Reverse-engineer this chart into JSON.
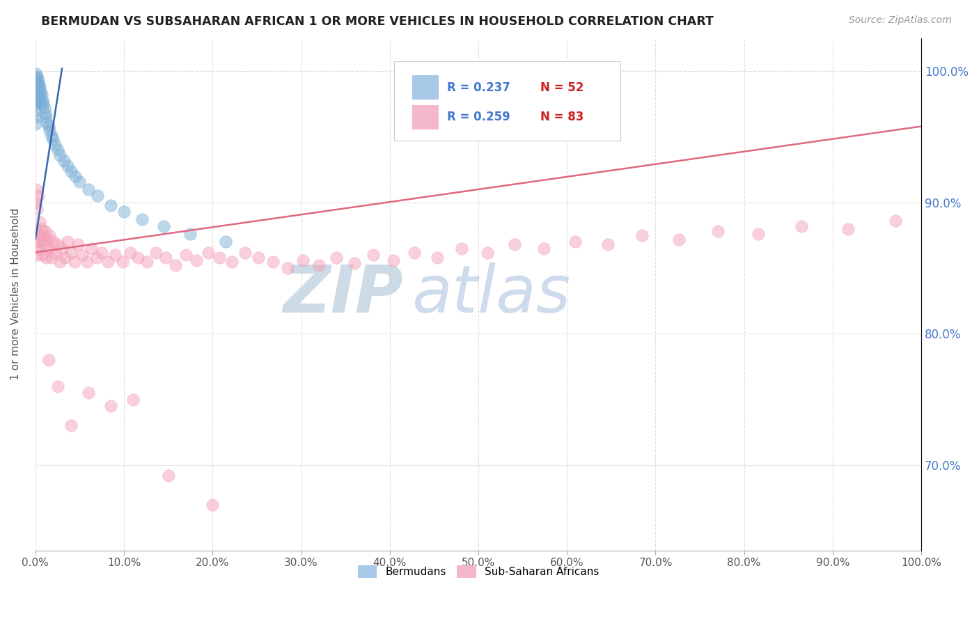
{
  "title": "BERMUDAN VS SUBSAHARAN AFRICAN 1 OR MORE VEHICLES IN HOUSEHOLD CORRELATION CHART",
  "source_text": "Source: ZipAtlas.com",
  "ylabel": "1 or more Vehicles in Household",
  "xlim": [
    0.0,
    1.0
  ],
  "ylim": [
    0.635,
    1.025
  ],
  "yticks": [
    0.7,
    0.8,
    0.9,
    1.0
  ],
  "ytick_labels": [
    "70.0%",
    "80.0%",
    "90.0%",
    "100.0%"
  ],
  "xticks": [
    0.0,
    0.1,
    0.2,
    0.3,
    0.4,
    0.5,
    0.6,
    0.7,
    0.8,
    0.9,
    1.0
  ],
  "xtick_labels": [
    "0.0%",
    "10.0%",
    "20.0%",
    "30.0%",
    "40.0%",
    "50.0%",
    "60.0%",
    "70.0%",
    "80.0%",
    "90.0%",
    "100.0%"
  ],
  "blue_color": "#7aaed6",
  "pink_color": "#f4a0b8",
  "blue_line_color": "#3366aa",
  "pink_line_color": "#e06880",
  "watermark_ZIP_color": "#c8d4e0",
  "watermark_atlas_color": "#b8cce4",
  "right_tick_color": "#4477cc",
  "grid_color": "#dddddd",
  "legend_blue_patch": "#a8c8e8",
  "legend_pink_patch": "#f4b8cc",
  "r_n_color_blue": "#4477cc",
  "r_n_color_red": "#cc2222",
  "blue_trend_x": [
    0.0,
    0.03
  ],
  "blue_trend_y": [
    0.872,
    1.002
  ],
  "pink_trend_x": [
    0.0,
    1.0
  ],
  "pink_trend_y": [
    0.862,
    0.958
  ],
  "bermudans_x": [
    0.0,
    0.0,
    0.0,
    0.0,
    0.0,
    0.0,
    0.0,
    0.001,
    0.001,
    0.001,
    0.001,
    0.001,
    0.002,
    0.002,
    0.002,
    0.002,
    0.003,
    0.003,
    0.003,
    0.004,
    0.004,
    0.005,
    0.005,
    0.006,
    0.006,
    0.007,
    0.008,
    0.009,
    0.01,
    0.011,
    0.012,
    0.013,
    0.015,
    0.016,
    0.018,
    0.02,
    0.022,
    0.025,
    0.028,
    0.032,
    0.036,
    0.04,
    0.045,
    0.05,
    0.06,
    0.07,
    0.085,
    0.1,
    0.12,
    0.145,
    0.175,
    0.215
  ],
  "bermudans_y": [
    0.99,
    0.985,
    0.98,
    0.975,
    0.97,
    0.965,
    0.96,
    0.998,
    0.995,
    0.992,
    0.988,
    0.982,
    0.996,
    0.991,
    0.986,
    0.978,
    0.993,
    0.987,
    0.979,
    0.99,
    0.983,
    0.988,
    0.981,
    0.985,
    0.976,
    0.982,
    0.978,
    0.975,
    0.972,
    0.968,
    0.965,
    0.961,
    0.958,
    0.955,
    0.951,
    0.948,
    0.944,
    0.94,
    0.936,
    0.932,
    0.928,
    0.924,
    0.92,
    0.916,
    0.91,
    0.905,
    0.898,
    0.893,
    0.887,
    0.882,
    0.876,
    0.87
  ],
  "subsaharan_x": [
    0.0,
    0.0,
    0.001,
    0.001,
    0.002,
    0.002,
    0.003,
    0.003,
    0.004,
    0.005,
    0.006,
    0.007,
    0.008,
    0.009,
    0.01,
    0.011,
    0.012,
    0.013,
    0.015,
    0.016,
    0.018,
    0.02,
    0.022,
    0.025,
    0.028,
    0.03,
    0.033,
    0.036,
    0.04,
    0.044,
    0.048,
    0.053,
    0.058,
    0.063,
    0.069,
    0.075,
    0.082,
    0.09,
    0.098,
    0.107,
    0.116,
    0.126,
    0.136,
    0.147,
    0.158,
    0.17,
    0.182,
    0.195,
    0.208,
    0.222,
    0.237,
    0.252,
    0.268,
    0.285,
    0.302,
    0.32,
    0.34,
    0.36,
    0.381,
    0.404,
    0.428,
    0.454,
    0.481,
    0.51,
    0.541,
    0.574,
    0.609,
    0.646,
    0.685,
    0.726,
    0.77,
    0.816,
    0.865,
    0.917,
    0.971,
    0.015,
    0.025,
    0.04,
    0.06,
    0.085,
    0.11,
    0.15,
    0.2
  ],
  "subsaharan_y": [
    0.9,
    0.88,
    0.91,
    0.87,
    0.895,
    0.86,
    0.905,
    0.865,
    0.875,
    0.885,
    0.87,
    0.88,
    0.86,
    0.875,
    0.868,
    0.878,
    0.858,
    0.872,
    0.865,
    0.875,
    0.858,
    0.87,
    0.862,
    0.868,
    0.855,
    0.865,
    0.858,
    0.87,
    0.862,
    0.855,
    0.868,
    0.86,
    0.855,
    0.865,
    0.858,
    0.862,
    0.855,
    0.86,
    0.855,
    0.862,
    0.858,
    0.855,
    0.862,
    0.858,
    0.852,
    0.86,
    0.856,
    0.862,
    0.858,
    0.855,
    0.862,
    0.858,
    0.855,
    0.85,
    0.856,
    0.852,
    0.858,
    0.854,
    0.86,
    0.856,
    0.862,
    0.858,
    0.865,
    0.862,
    0.868,
    0.865,
    0.87,
    0.868,
    0.875,
    0.872,
    0.878,
    0.876,
    0.882,
    0.88,
    0.886,
    0.78,
    0.76,
    0.73,
    0.755,
    0.745,
    0.75,
    0.692,
    0.67
  ]
}
